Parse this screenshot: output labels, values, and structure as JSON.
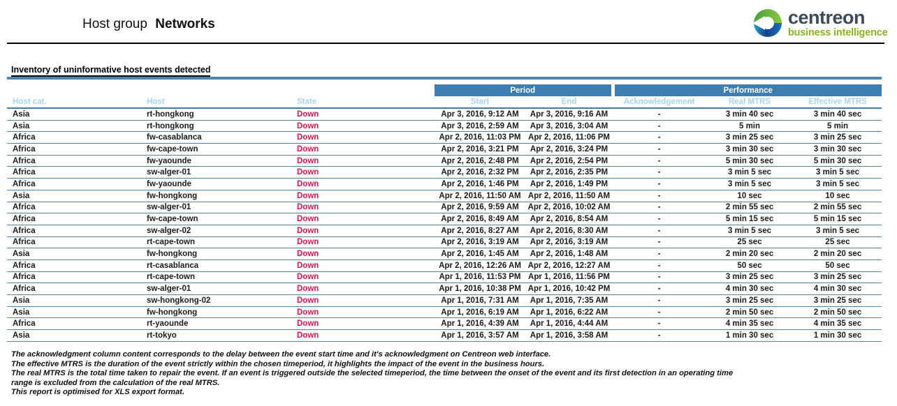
{
  "header": {
    "title_prefix": "Host group",
    "title_group": "Networks",
    "logo": {
      "name": "centreon",
      "subtitle": "business intelligence"
    }
  },
  "report": {
    "section_title": "Inventory of uninformative host events detected",
    "table": {
      "bands": [
        "Period",
        "Performance"
      ],
      "columns": [
        "Host cat.",
        "Host",
        "State",
        "Start",
        "End",
        "Acknowledgement",
        "Real MTRS",
        "Effective MTRS"
      ],
      "column_keys": [
        "host-cat",
        "host",
        "state",
        "start",
        "end",
        "acknowledgement",
        "real-mtrs",
        "effective-mtrs"
      ],
      "rows": [
        [
          "Asia",
          "rt-hongkong",
          "Down",
          "Apr 3, 2016, 9:12 AM",
          "Apr 3, 2016, 9:16 AM",
          "-",
          "3 min 40 sec",
          "3 min 40 sec"
        ],
        [
          "Asia",
          "rt-hongkong",
          "Down",
          "Apr 3, 2016, 2:59 AM",
          "Apr 3, 2016, 3:04 AM",
          "-",
          "5 min",
          "5 min"
        ],
        [
          "Africa",
          "fw-casablanca",
          "Down",
          "Apr 2, 2016, 11:03 PM",
          "Apr 2, 2016, 11:06 PM",
          "-",
          "3 min 25 sec",
          "3 min 25 sec"
        ],
        [
          "Africa",
          "fw-cape-town",
          "Down",
          "Apr 2, 2016, 3:21 PM",
          "Apr 2, 2016, 3:24 PM",
          "-",
          "3 min 30 sec",
          "3 min 30 sec"
        ],
        [
          "Africa",
          "fw-yaounde",
          "Down",
          "Apr 2, 2016, 2:48 PM",
          "Apr 2, 2016, 2:54 PM",
          "-",
          "5 min 30 sec",
          "5 min 30 sec"
        ],
        [
          "Africa",
          "sw-alger-01",
          "Down",
          "Apr 2, 2016, 2:32 PM",
          "Apr 2, 2016, 2:35 PM",
          "-",
          "3 min 5 sec",
          "3 min 5 sec"
        ],
        [
          "Africa",
          "fw-yaounde",
          "Down",
          "Apr 2, 2016, 1:46 PM",
          "Apr 2, 2016, 1:49 PM",
          "-",
          "3 min 5 sec",
          "3 min 5 sec"
        ],
        [
          "Asia",
          "fw-hongkong",
          "Down",
          "Apr 2, 2016, 11:50 AM",
          "Apr 2, 2016, 11:50 AM",
          "-",
          "10 sec",
          "10 sec"
        ],
        [
          "Africa",
          "sw-alger-01",
          "Down",
          "Apr 2, 2016, 9:59 AM",
          "Apr 2, 2016, 10:02 AM",
          "-",
          "2 min 55 sec",
          "2 min 55 sec"
        ],
        [
          "Africa",
          "fw-cape-town",
          "Down",
          "Apr 2, 2016, 8:49 AM",
          "Apr 2, 2016, 8:54 AM",
          "-",
          "5 min 15 sec",
          "5 min 15 sec"
        ],
        [
          "Africa",
          "sw-alger-02",
          "Down",
          "Apr 2, 2016, 8:27 AM",
          "Apr 2, 2016, 8:30 AM",
          "-",
          "3 min 5 sec",
          "3 min 5 sec"
        ],
        [
          "Africa",
          "rt-cape-town",
          "Down",
          "Apr 2, 2016, 3:19 AM",
          "Apr 2, 2016, 3:19 AM",
          "-",
          "25 sec",
          "25 sec"
        ],
        [
          "Asia",
          "fw-hongkong",
          "Down",
          "Apr 2, 2016, 1:45 AM",
          "Apr 2, 2016, 1:48 AM",
          "-",
          "2 min 20 sec",
          "2 min 20 sec"
        ],
        [
          "Africa",
          "rt-casablanca",
          "Down",
          "Apr 2, 2016, 12:26 AM",
          "Apr 2, 2016, 12:27 AM",
          "-",
          "50 sec",
          "50 sec"
        ],
        [
          "Africa",
          "rt-cape-town",
          "Down",
          "Apr 1, 2016, 11:53 PM",
          "Apr 1, 2016, 11:56 PM",
          "-",
          "3 min 25 sec",
          "3 min 25 sec"
        ],
        [
          "Africa",
          "sw-alger-01",
          "Down",
          "Apr 1, 2016, 10:38 PM",
          "Apr 1, 2016, 10:42 PM",
          "-",
          "4 min 30 sec",
          "4 min 30 sec"
        ],
        [
          "Asia",
          "sw-hongkong-02",
          "Down",
          "Apr 1, 2016, 7:31 AM",
          "Apr 1, 2016, 7:35 AM",
          "-",
          "3 min 25 sec",
          "3 min 25 sec"
        ],
        [
          "Asia",
          "fw-hongkong",
          "Down",
          "Apr 1, 2016, 6:19 AM",
          "Apr 1, 2016, 6:22 AM",
          "-",
          "2 min 50 sec",
          "2 min 50 sec"
        ],
        [
          "Africa",
          "rt-yaounde",
          "Down",
          "Apr 1, 2016, 4:39 AM",
          "Apr 1, 2016, 4:44 AM",
          "-",
          "4 min 35 sec",
          "4 min 35 sec"
        ],
        [
          "Asia",
          "rt-tokyo",
          "Down",
          "Apr 1, 2016, 3:57 AM",
          "Apr 1, 2016, 3:58 AM",
          "-",
          "1 min 30 sec",
          "1 min 30 sec"
        ]
      ]
    },
    "footnotes": [
      "The acknowledgment column content corresponds to the delay between the event start time and it's acknowledgment on Centreon web interface.",
      "The effective MTRS is the duration of the event strictly within the chosen timeperiod, it highlights the impact of the event in the business hours.",
      "The real MTRS is the total time taken to repair the event. If an event is triggered outside the selected timeperiod, the time between the onset of the event and its first detection in an operating time",
      "range  is excluded from the calculation of the real MTRS.",
      "This report is optimised for XLS export format."
    ]
  },
  "colors": {
    "band_blue": "#3E7DB2",
    "subheader_text": "#A6D3EF",
    "row_line": "#4F86B0",
    "state_down_red": "#E2134E",
    "section_bar_blue": "#4E86B2",
    "logo_dark": "#3E4A57",
    "logo_green": "#8CB322"
  }
}
